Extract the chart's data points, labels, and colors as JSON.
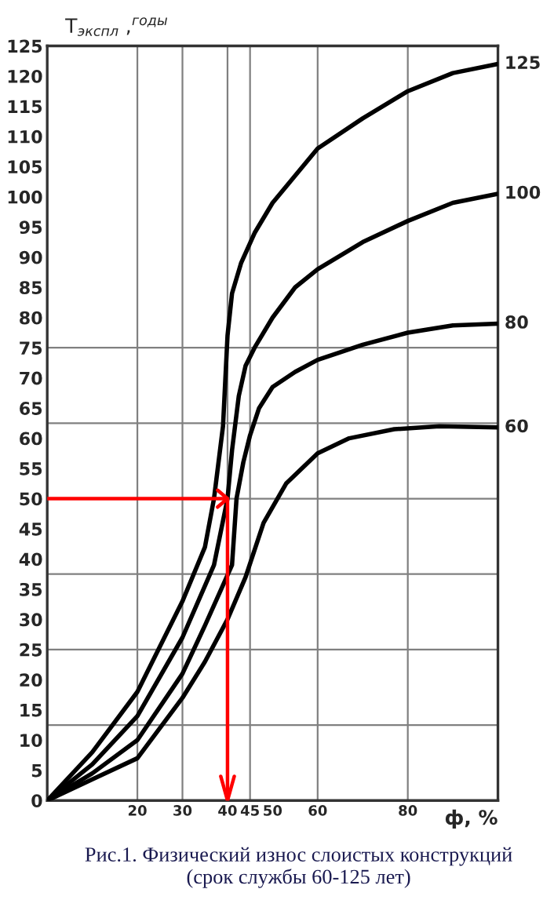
{
  "chart_data": {
    "type": "line",
    "ylabel": "Т$_{экспл}$ ,$^{годы}$",
    "xlabel": "ф, %",
    "annotations": [
      "Рис.1. Физический износ слоистых конструкций\n(срок службы 60-125 лет)"
    ],
    "xlim": [
      0,
      100
    ],
    "xticks": [
      20,
      30,
      40,
      45,
      50,
      60,
      80
    ],
    "ylim": [
      0,
      125
    ],
    "yticks": [
      0,
      5,
      10,
      15,
      20,
      25,
      30,
      35,
      40,
      45,
      50,
      55,
      60,
      65,
      70,
      75,
      80,
      85,
      90,
      95,
      100,
      105,
      110,
      115,
      120,
      125
    ],
    "grid": false,
    "ref_lines": [
      {
        "axis": "x",
        "value": 20,
        "color": "#808080"
      },
      {
        "axis": "x",
        "value": 30,
        "color": "#808080"
      },
      {
        "axis": "x",
        "value": 40,
        "color": "#808080"
      },
      {
        "axis": "x",
        "value": 45,
        "color": "#808080"
      },
      {
        "axis": "x",
        "value": 60,
        "color": "#808080"
      },
      {
        "axis": "x",
        "value": 80,
        "color": "#808080"
      },
      {
        "axis": "y",
        "value": 75,
        "color": "#808080"
      },
      {
        "axis": "y",
        "value": 62.5,
        "color": "#808080"
      },
      {
        "axis": "y",
        "value": 50,
        "color": "#808080"
      },
      {
        "axis": "y",
        "value": 37.5,
        "color": "#808080"
      },
      {
        "axis": "y",
        "value": 25,
        "color": "#808080"
      },
      {
        "axis": "y",
        "value": 12.5,
        "color": "#808080"
      }
    ],
    "series": [
      {
        "name": "125",
        "color": "#000000",
        "x": [
          0,
          10,
          20,
          30,
          35,
          37,
          39,
          40,
          41,
          43,
          46,
          50,
          60,
          70,
          80,
          90,
          100
        ],
        "values": [
          0,
          8,
          18,
          33,
          42,
          50,
          62,
          77,
          84,
          89,
          94,
          99,
          108,
          113,
          117.5,
          120.5,
          122
        ]
      },
      {
        "name": "100",
        "color": "#000000",
        "x": [
          0,
          10,
          20,
          30,
          37,
          40,
          41,
          42.5,
          44,
          46,
          50,
          55,
          60,
          70,
          80,
          90,
          100
        ],
        "values": [
          0,
          6,
          14,
          27,
          39,
          50,
          58,
          67,
          72,
          75,
          80,
          85,
          88,
          92.5,
          96,
          99,
          100.5
        ]
      },
      {
        "name": "80",
        "color": "#000000",
        "x": [
          0,
          10,
          20,
          30,
          35,
          41,
          42,
          43.5,
          45,
          47,
          50,
          55,
          60,
          70,
          80,
          90,
          100
        ],
        "values": [
          0,
          4.5,
          10,
          21,
          29,
          39,
          50,
          56,
          60.5,
          65,
          68.5,
          71,
          73,
          75.5,
          77.5,
          78.7,
          79
        ]
      },
      {
        "name": "60",
        "color": "#000000",
        "x": [
          0,
          10,
          20,
          30,
          35,
          40,
          44,
          48,
          53,
          60,
          67,
          77,
          87,
          100
        ],
        "values": [
          0,
          3.5,
          7,
          17,
          23,
          30,
          37,
          46,
          52.5,
          57.5,
          60,
          61.5,
          62,
          61.8
        ]
      },
      {
        "color": "#ff0000",
        "x": [
          0,
          40,
          40
        ],
        "values": [
          50,
          50,
          0
        ]
      }
    ]
  }
}
